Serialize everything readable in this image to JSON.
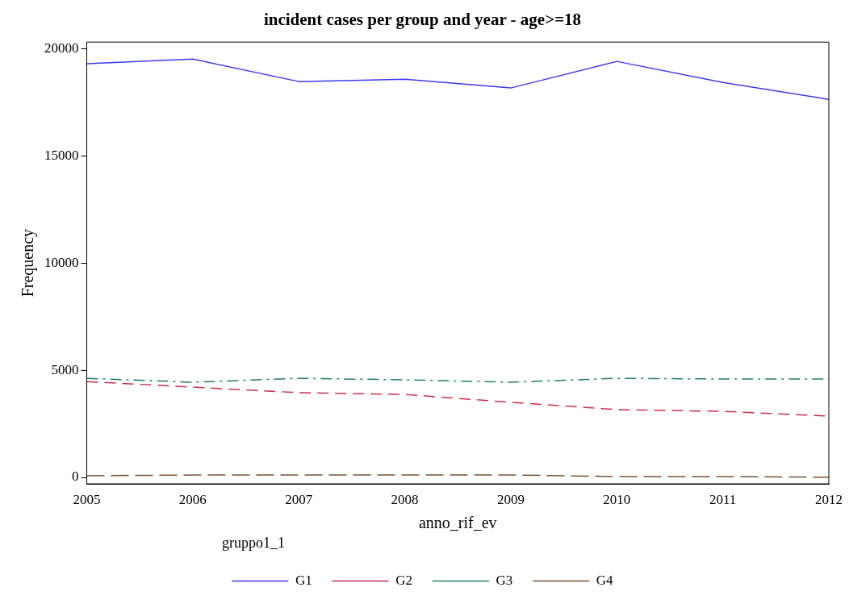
{
  "chart_data": {
    "type": "line",
    "title": "incident cases per group and year - age>=18",
    "xlabel": "anno_rif_ev",
    "ylabel": "Frequency",
    "legend_title": "gruppo1_1",
    "legend": "bottom",
    "grid": false,
    "marker": "none",
    "x": [
      2005,
      2006,
      2007,
      2008,
      2009,
      2010,
      2011,
      2012
    ],
    "xlim": [
      2005,
      2012
    ],
    "xticks": [
      2005,
      2006,
      2007,
      2008,
      2009,
      2010,
      2011,
      2012
    ],
    "ylim": [
      -300,
      20300
    ],
    "yticks": [
      0,
      5000,
      10000,
      15000,
      20000
    ],
    "series": [
      {
        "name": "G1",
        "color": "#3b3bf0",
        "line_style": "solid",
        "values": [
          19290,
          19510,
          18460,
          18570,
          18160,
          19400,
          18420,
          17630
        ]
      },
      {
        "name": "G2",
        "color": "#c8324a",
        "line_style": "dashed",
        "values": [
          4470,
          4210,
          3950,
          3870,
          3500,
          3160,
          3080,
          2860
        ]
      },
      {
        "name": "G3",
        "color": "#1f7f6f",
        "line_style": "dashdot",
        "values": [
          4620,
          4440,
          4620,
          4550,
          4440,
          4620,
          4590,
          4590
        ]
      },
      {
        "name": "G4",
        "color": "#7a5232",
        "line_style": "longdash",
        "values": [
          80,
          110,
          110,
          110,
          110,
          40,
          40,
          10
        ]
      }
    ]
  }
}
